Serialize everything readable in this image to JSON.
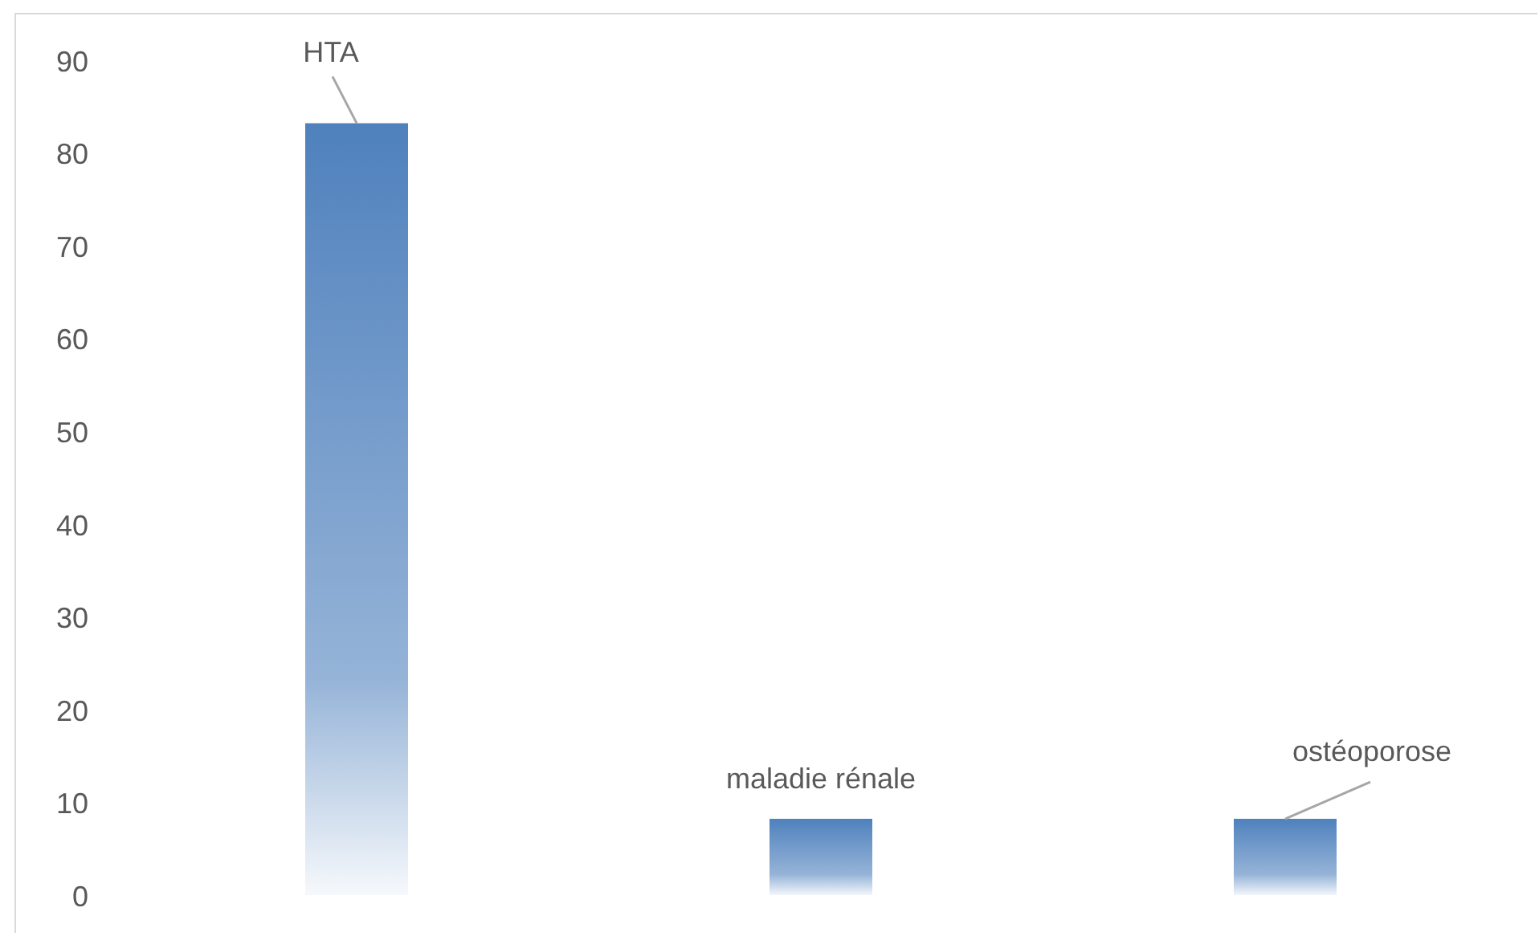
{
  "chart_data": {
    "type": "bar",
    "categories": [
      null,
      null,
      null
    ],
    "values": [
      83.3,
      8.3,
      8.3
    ],
    "value_labels": [
      "HTA",
      "maladie rénale",
      "ostéoporose"
    ],
    "color": "#4f81bd",
    "ylim": [
      0,
      90
    ],
    "yticks": [
      0,
      10,
      20,
      30,
      40,
      50,
      60,
      70,
      80,
      90
    ]
  }
}
